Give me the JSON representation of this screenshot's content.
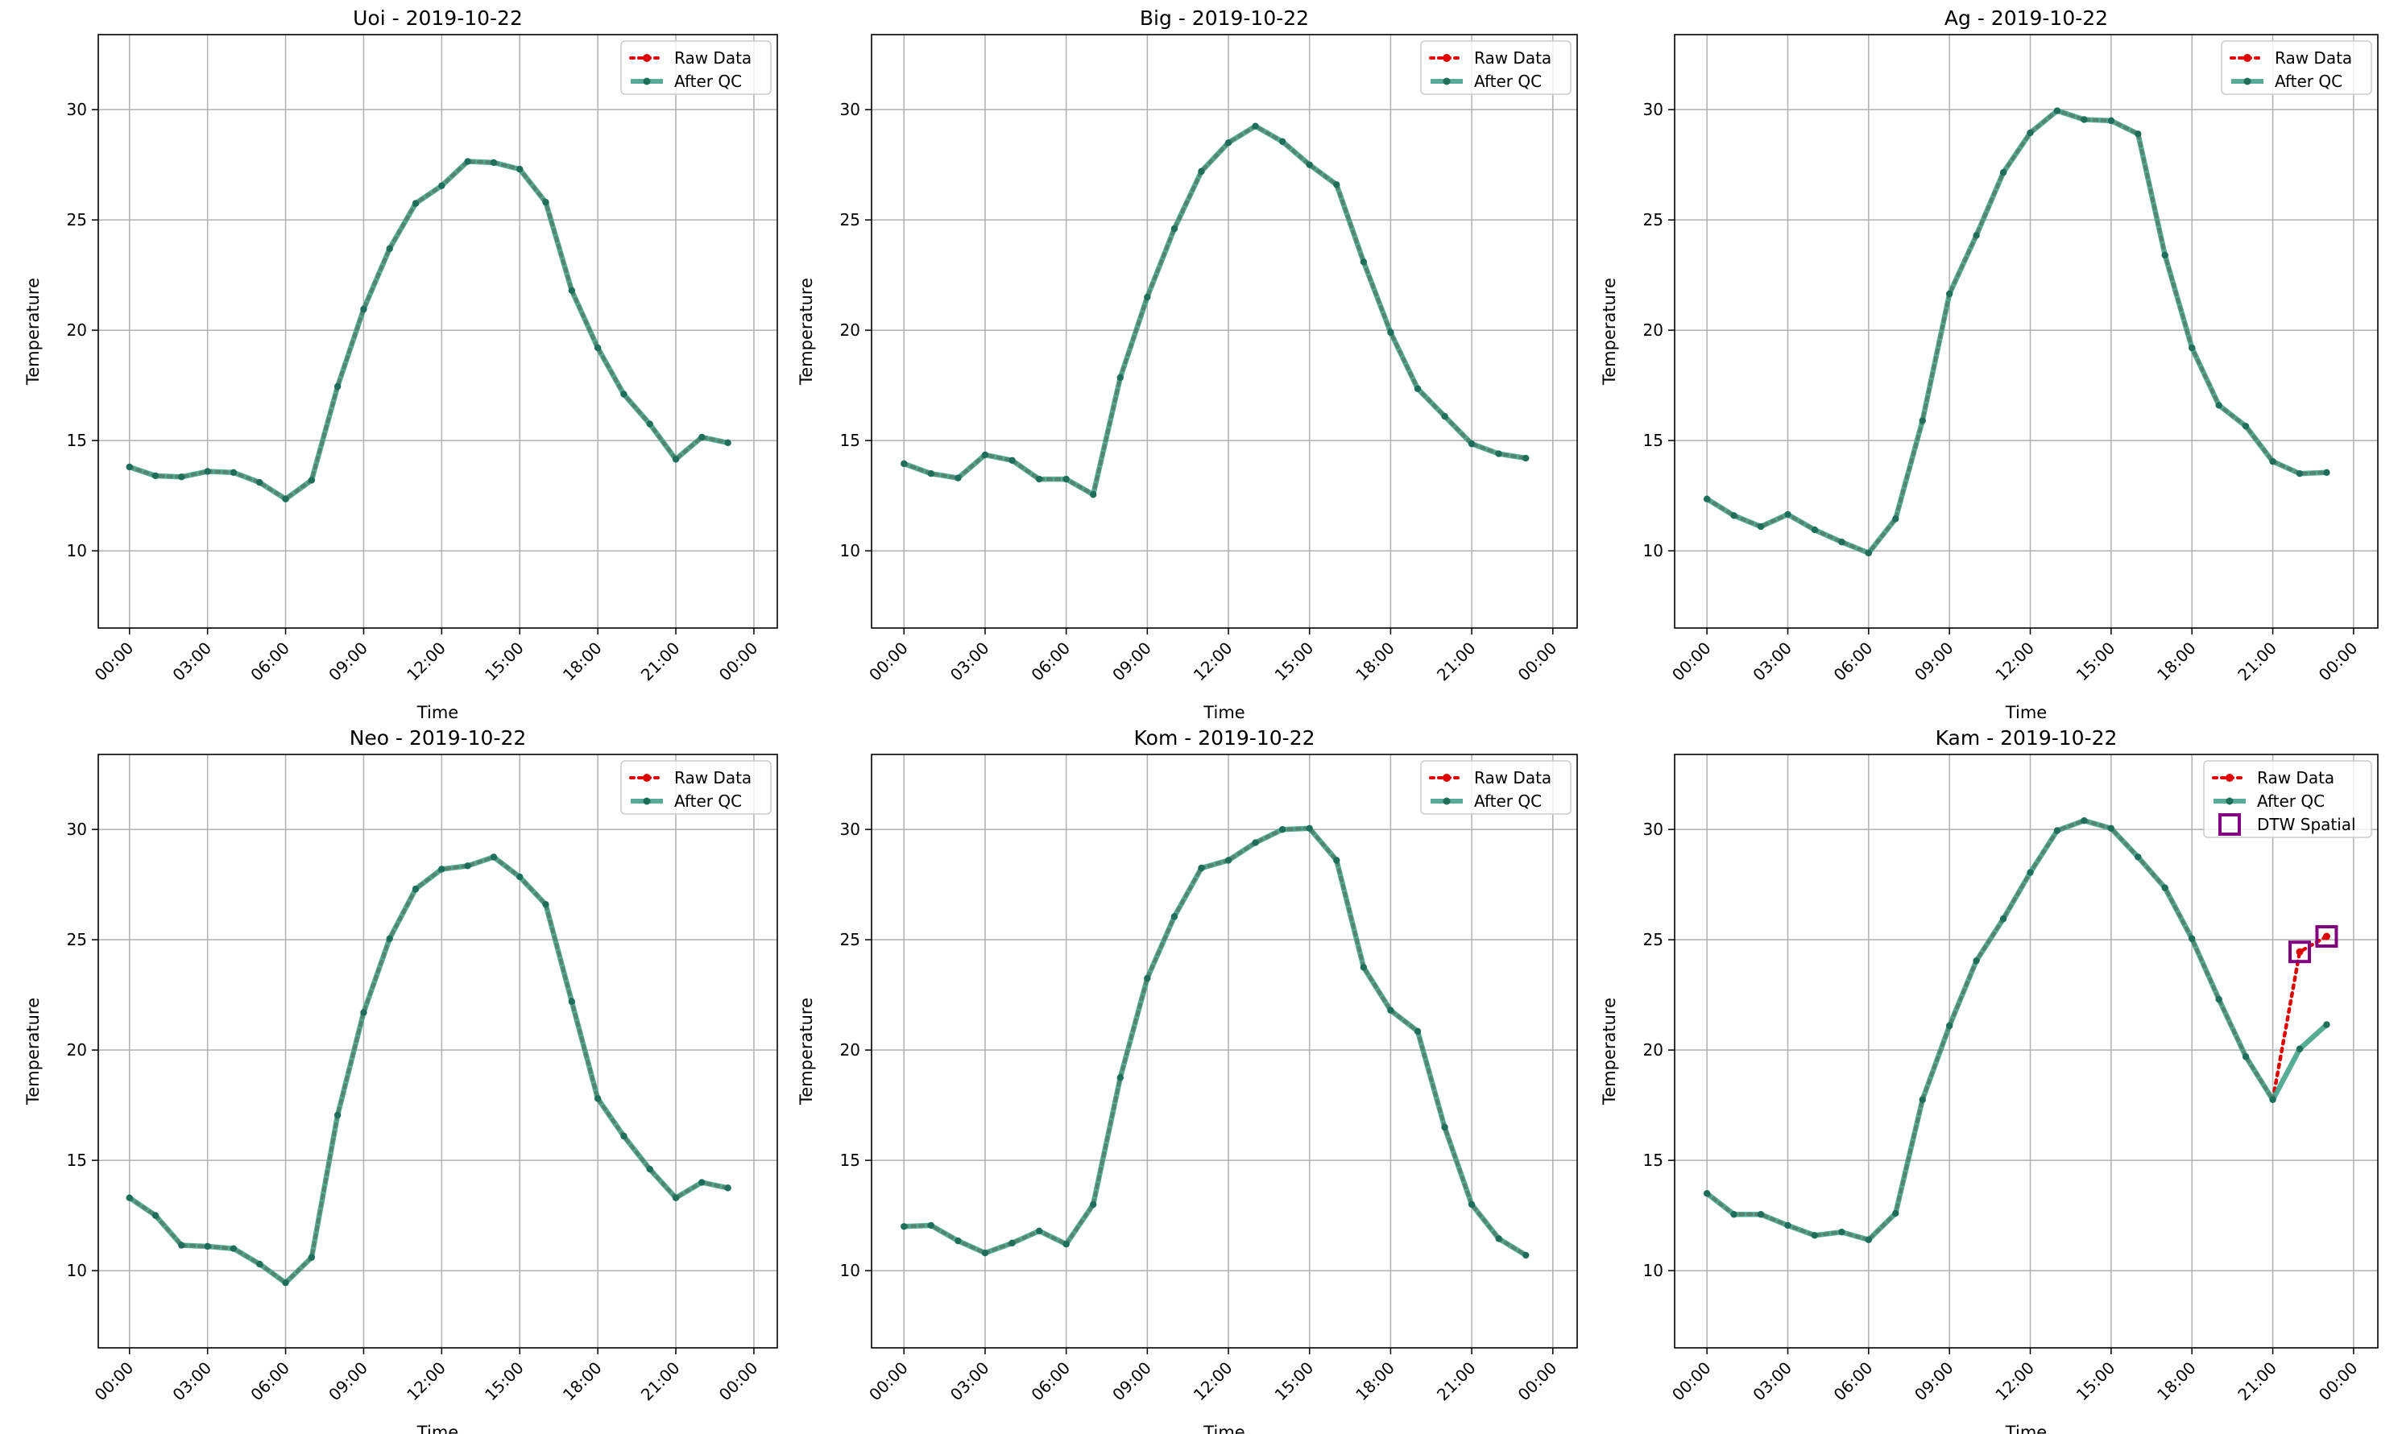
{
  "colors": {
    "raw": "#e00000",
    "qc": "#3a9d84",
    "qc_marker": "#1f6e5a",
    "flag": "#800080"
  },
  "legend": {
    "raw": "Raw Data",
    "qc": "After QC",
    "flag": "DTW Spatial"
  },
  "chart_data": [
    {
      "type": "line",
      "title": "Uoi - 2019-10-22",
      "xlabel": "Time",
      "ylabel": "Temperature",
      "x_ticks": [
        "00:00",
        "03:00",
        "06:00",
        "09:00",
        "12:00",
        "15:00",
        "18:00",
        "21:00",
        "00:00"
      ],
      "y_ticks": [
        10,
        15,
        20,
        25,
        30
      ],
      "xlim": [
        -1.2,
        24.9
      ],
      "ylim": [
        6.5,
        33.4
      ],
      "legend": "top-right",
      "grid": true,
      "series": [
        {
          "name": "Raw Data",
          "values": [
            13.8,
            13.4,
            13.35,
            13.6,
            13.55,
            13.1,
            12.35,
            13.2,
            17.45,
            20.95,
            23.7,
            25.75,
            26.55,
            27.65,
            27.6,
            27.3,
            25.8,
            21.8,
            19.2,
            17.1,
            15.75,
            14.15,
            15.15,
            14.9
          ]
        },
        {
          "name": "After QC",
          "values": [
            13.8,
            13.4,
            13.35,
            13.6,
            13.55,
            13.1,
            12.35,
            13.2,
            17.45,
            20.95,
            23.7,
            25.75,
            26.55,
            27.65,
            27.6,
            27.3,
            25.8,
            21.8,
            19.2,
            17.1,
            15.75,
            14.15,
            15.15,
            14.9
          ]
        }
      ],
      "flagged": []
    },
    {
      "type": "line",
      "title": "Big - 2019-10-22",
      "xlabel": "Time",
      "ylabel": "Temperature",
      "x_ticks": [
        "00:00",
        "03:00",
        "06:00",
        "09:00",
        "12:00",
        "15:00",
        "18:00",
        "21:00",
        "00:00"
      ],
      "y_ticks": [
        10,
        15,
        20,
        25,
        30
      ],
      "xlim": [
        -1.2,
        24.9
      ],
      "ylim": [
        6.5,
        33.4
      ],
      "legend": "top-right",
      "grid": true,
      "series": [
        {
          "name": "Raw Data",
          "values": [
            13.95,
            13.5,
            13.3,
            14.35,
            14.1,
            13.25,
            13.25,
            12.55,
            17.85,
            21.5,
            24.6,
            27.2,
            28.5,
            29.25,
            28.55,
            27.5,
            26.6,
            23.1,
            19.9,
            17.35,
            16.1,
            14.85,
            14.4,
            14.2
          ]
        },
        {
          "name": "After QC",
          "values": [
            13.95,
            13.5,
            13.3,
            14.35,
            14.1,
            13.25,
            13.25,
            12.55,
            17.85,
            21.5,
            24.6,
            27.2,
            28.5,
            29.25,
            28.55,
            27.5,
            26.6,
            23.1,
            19.9,
            17.35,
            16.1,
            14.85,
            14.4,
            14.2
          ]
        }
      ],
      "flagged": []
    },
    {
      "type": "line",
      "title": "Ag - 2019-10-22",
      "xlabel": "Time",
      "ylabel": "Temperature",
      "x_ticks": [
        "00:00",
        "03:00",
        "06:00",
        "09:00",
        "12:00",
        "15:00",
        "18:00",
        "21:00",
        "00:00"
      ],
      "y_ticks": [
        10,
        15,
        20,
        25,
        30
      ],
      "xlim": [
        -1.2,
        24.9
      ],
      "ylim": [
        6.5,
        33.4
      ],
      "legend": "top-right",
      "grid": true,
      "series": [
        {
          "name": "Raw Data",
          "values": [
            12.35,
            11.6,
            11.1,
            11.65,
            10.95,
            10.4,
            9.9,
            11.45,
            15.9,
            21.65,
            24.3,
            27.15,
            28.95,
            29.95,
            29.55,
            29.5,
            28.9,
            23.4,
            19.2,
            16.6,
            15.65,
            14.05,
            13.5,
            13.55
          ]
        },
        {
          "name": "After QC",
          "values": [
            12.35,
            11.6,
            11.1,
            11.65,
            10.95,
            10.4,
            9.9,
            11.45,
            15.9,
            21.65,
            24.3,
            27.15,
            28.95,
            29.95,
            29.55,
            29.5,
            28.9,
            23.4,
            19.2,
            16.6,
            15.65,
            14.05,
            13.5,
            13.55
          ]
        }
      ],
      "flagged": []
    },
    {
      "type": "line",
      "title": "Neo - 2019-10-22",
      "xlabel": "Time",
      "ylabel": "Temperature",
      "x_ticks": [
        "00:00",
        "03:00",
        "06:00",
        "09:00",
        "12:00",
        "15:00",
        "18:00",
        "21:00",
        "00:00"
      ],
      "y_ticks": [
        10,
        15,
        20,
        25,
        30
      ],
      "xlim": [
        -1.2,
        24.9
      ],
      "ylim": [
        6.5,
        33.4
      ],
      "legend": "top-right",
      "grid": true,
      "series": [
        {
          "name": "Raw Data",
          "values": [
            13.3,
            12.5,
            11.15,
            11.1,
            11.0,
            10.3,
            9.45,
            10.6,
            17.05,
            21.7,
            25.05,
            27.3,
            28.2,
            28.35,
            28.75,
            27.85,
            26.6,
            22.2,
            17.8,
            16.1,
            14.6,
            13.3,
            14.0,
            13.75
          ]
        },
        {
          "name": "After QC",
          "values": [
            13.3,
            12.5,
            11.15,
            11.1,
            11.0,
            10.3,
            9.45,
            10.6,
            17.05,
            21.7,
            25.05,
            27.3,
            28.2,
            28.35,
            28.75,
            27.85,
            26.6,
            22.2,
            17.8,
            16.1,
            14.6,
            13.3,
            14.0,
            13.75
          ]
        }
      ],
      "flagged": []
    },
    {
      "type": "line",
      "title": "Kom - 2019-10-22",
      "xlabel": "Time",
      "ylabel": "Temperature",
      "x_ticks": [
        "00:00",
        "03:00",
        "06:00",
        "09:00",
        "12:00",
        "15:00",
        "18:00",
        "21:00",
        "00:00"
      ],
      "y_ticks": [
        10,
        15,
        20,
        25,
        30
      ],
      "xlim": [
        -1.2,
        24.9
      ],
      "ylim": [
        6.5,
        33.4
      ],
      "legend": "top-right",
      "grid": true,
      "series": [
        {
          "name": "Raw Data",
          "values": [
            12.0,
            12.05,
            11.35,
            10.8,
            11.25,
            11.8,
            11.2,
            13.0,
            18.75,
            23.25,
            26.05,
            28.25,
            28.6,
            29.4,
            30.0,
            30.05,
            28.6,
            23.75,
            21.8,
            20.85,
            16.5,
            13.0,
            11.45,
            10.7
          ]
        },
        {
          "name": "After QC",
          "values": [
            12.0,
            12.05,
            11.35,
            10.8,
            11.25,
            11.8,
            11.2,
            13.0,
            18.75,
            23.25,
            26.05,
            28.25,
            28.6,
            29.4,
            30.0,
            30.05,
            28.6,
            23.75,
            21.8,
            20.85,
            16.5,
            13.0,
            11.45,
            10.7
          ]
        }
      ],
      "flagged": []
    },
    {
      "type": "line",
      "title": "Kam - 2019-10-22",
      "xlabel": "Time",
      "ylabel": "Temperature",
      "x_ticks": [
        "00:00",
        "03:00",
        "06:00",
        "09:00",
        "12:00",
        "15:00",
        "18:00",
        "21:00",
        "00:00"
      ],
      "y_ticks": [
        10,
        15,
        20,
        25,
        30
      ],
      "xlim": [
        -1.2,
        24.9
      ],
      "ylim": [
        6.5,
        33.4
      ],
      "legend": "top-right",
      "grid": true,
      "series": [
        {
          "name": "Raw Data",
          "values": [
            13.5,
            12.55,
            12.55,
            12.05,
            11.6,
            11.75,
            11.4,
            12.6,
            17.75,
            21.1,
            24.05,
            25.95,
            28.05,
            29.95,
            30.4,
            30.05,
            28.75,
            27.35,
            25.05,
            22.3,
            19.7,
            17.75,
            24.45,
            25.15
          ]
        },
        {
          "name": "After QC",
          "values": [
            13.5,
            12.55,
            12.55,
            12.05,
            11.6,
            11.75,
            11.4,
            12.6,
            17.75,
            21.1,
            24.05,
            25.95,
            28.05,
            29.95,
            30.4,
            30.05,
            28.75,
            27.35,
            25.05,
            22.3,
            19.7,
            17.75,
            20.05,
            21.15
          ]
        }
      ],
      "flagged": [
        {
          "hour": 22,
          "value": 24.45
        },
        {
          "hour": 23,
          "value": 25.15
        }
      ]
    }
  ]
}
